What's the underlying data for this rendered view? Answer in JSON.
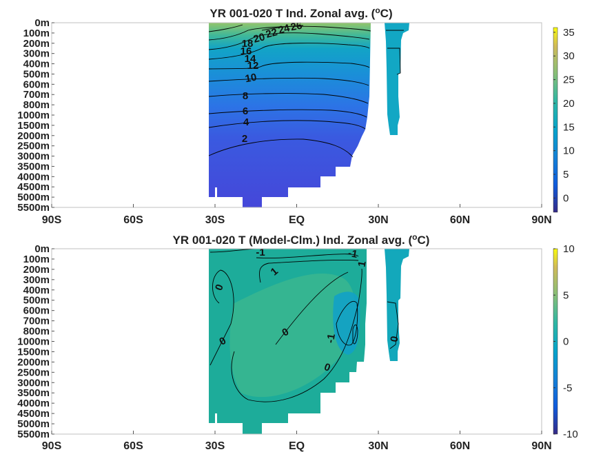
{
  "chart_data": [
    {
      "type": "heatmap",
      "title": "YR 001-020 T Ind. Zonal avg. (",
      "title_unit_sup": "o",
      "title_unit_end": "C)",
      "x_ticks": [
        "90S",
        "60S",
        "30S",
        "EQ",
        "30N",
        "60N",
        "90N"
      ],
      "x_values": [
        -90,
        -60,
        -30,
        0,
        30,
        60,
        90
      ],
      "xlim": [
        -90,
        90
      ],
      "y_ticks": [
        "0m",
        "100m",
        "200m",
        "300m",
        "400m",
        "500m",
        "600m",
        "700m",
        "800m",
        "1000m",
        "1500m",
        "2000m",
        "2500m",
        "3000m",
        "3500m",
        "4000m",
        "4500m",
        "5000m",
        "5500m"
      ],
      "colorbar": {
        "ticks": [
          35,
          30,
          25,
          20,
          15,
          10,
          5,
          0
        ],
        "range": [
          -3,
          36
        ],
        "colormap": "parula"
      },
      "contour_labels": [
        "2",
        "4",
        "6",
        "8",
        "10",
        "12",
        "14",
        "16",
        "18",
        "20",
        "22",
        "24",
        "26"
      ]
    },
    {
      "type": "heatmap",
      "title": "YR 001-020 T (Model-Clm.) Ind. Zonal avg. (",
      "title_unit_sup": "o",
      "title_unit_end": "C)",
      "x_ticks": [
        "90S",
        "60S",
        "30S",
        "EQ",
        "30N",
        "60N",
        "90N"
      ],
      "x_values": [
        -90,
        -60,
        -30,
        0,
        30,
        60,
        90
      ],
      "xlim": [
        -90,
        90
      ],
      "y_ticks": [
        "0m",
        "100m",
        "200m",
        "300m",
        "400m",
        "500m",
        "600m",
        "700m",
        "800m",
        "1000m",
        "1500m",
        "2000m",
        "2500m",
        "3000m",
        "3500m",
        "4000m",
        "4500m",
        "5000m",
        "5500m"
      ],
      "colorbar": {
        "ticks": [
          10,
          5,
          0,
          -5,
          -10
        ],
        "range": [
          -10,
          10
        ],
        "colormap": "parula"
      },
      "contour_labels": [
        "-1",
        "-1",
        "1",
        "1",
        "0",
        "0",
        "0",
        "0",
        "-1",
        "0"
      ]
    }
  ]
}
